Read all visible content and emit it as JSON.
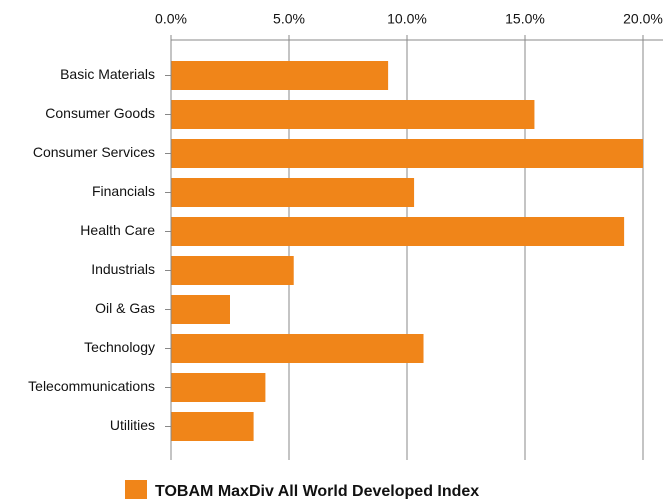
{
  "chart_data": {
    "type": "barh",
    "categories": [
      "Basic Materials",
      "Consumer Goods",
      "Consumer Services",
      "Financials",
      "Health Care",
      "Industrials",
      "Oil & Gas",
      "Technology",
      "Telecommunications",
      "Utilities"
    ],
    "series": [
      {
        "name": "TOBAM MaxDiv All World Developed Index",
        "color": "#f08519",
        "values": [
          9.2,
          15.4,
          20.0,
          10.3,
          19.2,
          5.2,
          2.5,
          10.7,
          4.0,
          3.5
        ]
      }
    ],
    "xlim": [
      0,
      20
    ],
    "xticks": [
      {
        "value": 0,
        "label": "0.0%"
      },
      {
        "value": 5,
        "label": "5.0%"
      },
      {
        "value": 10,
        "label": "10.0%"
      },
      {
        "value": 15,
        "label": "15.0%"
      },
      {
        "value": 20,
        "label": "20.0%"
      }
    ],
    "grid": true,
    "legend": "bottom"
  }
}
